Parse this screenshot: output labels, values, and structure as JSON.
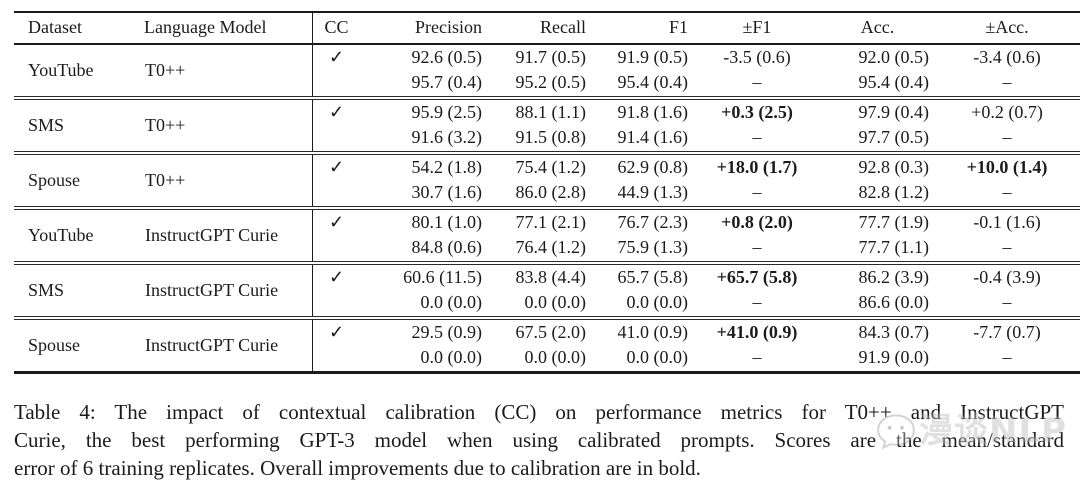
{
  "table": {
    "headers": [
      "Dataset",
      "Language Model",
      "CC",
      "Precision",
      "Recall",
      "F1",
      "±F1",
      "Acc.",
      "±Acc."
    ],
    "check_glyph": "✓",
    "groups": [
      {
        "dataset": "YouTube",
        "model": "T0++",
        "rows": [
          {
            "cc": "✓",
            "cells": [
              {
                "t": "92.6 (0.5)"
              },
              {
                "t": "91.7 (0.5)"
              },
              {
                "t": "91.9 (0.5)"
              },
              {
                "t": "-3.5 (0.6)"
              },
              {
                "t": "92.0 (0.5)"
              },
              {
                "t": "-3.4 (0.6)"
              }
            ]
          },
          {
            "cc": "",
            "cells": [
              {
                "t": "95.7 (0.4)"
              },
              {
                "t": "95.2 (0.5)"
              },
              {
                "t": "95.4 (0.4)"
              },
              {
                "t": "–"
              },
              {
                "t": "95.4 (0.4)"
              },
              {
                "t": "–"
              }
            ]
          }
        ]
      },
      {
        "dataset": "SMS",
        "model": "T0++",
        "rows": [
          {
            "cc": "✓",
            "cells": [
              {
                "t": "95.9 (2.5)"
              },
              {
                "t": "88.1 (1.1)"
              },
              {
                "t": "91.8 (1.6)"
              },
              {
                "t": "+0.3 (2.5)",
                "b": true
              },
              {
                "t": "97.9 (0.4)"
              },
              {
                "t": "+0.2 (0.7)"
              }
            ]
          },
          {
            "cc": "",
            "cells": [
              {
                "t": "91.6 (3.2)"
              },
              {
                "t": "91.5 (0.8)"
              },
              {
                "t": "91.4 (1.6)"
              },
              {
                "t": "–"
              },
              {
                "t": "97.7 (0.5)"
              },
              {
                "t": "–"
              }
            ]
          }
        ]
      },
      {
        "dataset": "Spouse",
        "model": "T0++",
        "rows": [
          {
            "cc": "✓",
            "cells": [
              {
                "t": "54.2 (1.8)"
              },
              {
                "t": "75.4 (1.2)"
              },
              {
                "t": "62.9 (0.8)"
              },
              {
                "t": "+18.0 (1.7)",
                "b": true
              },
              {
                "t": "92.8 (0.3)"
              },
              {
                "t": "+10.0 (1.4)",
                "b": true
              }
            ]
          },
          {
            "cc": "",
            "cells": [
              {
                "t": "30.7 (1.6)"
              },
              {
                "t": "86.0 (2.8)"
              },
              {
                "t": "44.9 (1.3)"
              },
              {
                "t": "–"
              },
              {
                "t": "82.8 (1.2)"
              },
              {
                "t": "–"
              }
            ]
          }
        ]
      },
      {
        "dataset": "YouTube",
        "model": "InstructGPT Curie",
        "rows": [
          {
            "cc": "✓",
            "cells": [
              {
                "t": "80.1 (1.0)"
              },
              {
                "t": "77.1 (2.1)"
              },
              {
                "t": "76.7 (2.3)"
              },
              {
                "t": "+0.8 (2.0)",
                "b": true
              },
              {
                "t": "77.7 (1.9)"
              },
              {
                "t": "-0.1 (1.6)"
              }
            ]
          },
          {
            "cc": "",
            "cells": [
              {
                "t": "84.8 (0.6)"
              },
              {
                "t": "76.4 (1.2)"
              },
              {
                "t": "75.9 (1.3)"
              },
              {
                "t": "–"
              },
              {
                "t": "77.7 (1.1)"
              },
              {
                "t": "–"
              }
            ]
          }
        ]
      },
      {
        "dataset": "SMS",
        "model": "InstructGPT Curie",
        "rows": [
          {
            "cc": "✓",
            "cells": [
              {
                "t": "60.6 (11.5)"
              },
              {
                "t": "83.8 (4.4)"
              },
              {
                "t": "65.7 (5.8)"
              },
              {
                "t": "+65.7 (5.8)",
                "b": true
              },
              {
                "t": "86.2 (3.9)"
              },
              {
                "t": "-0.4 (3.9)"
              }
            ]
          },
          {
            "cc": "",
            "cells": [
              {
                "t": "0.0 (0.0)"
              },
              {
                "t": "0.0 (0.0)"
              },
              {
                "t": "0.0 (0.0)"
              },
              {
                "t": "–"
              },
              {
                "t": "86.6 (0.0)"
              },
              {
                "t": "–"
              }
            ]
          }
        ]
      },
      {
        "dataset": "Spouse",
        "model": "InstructGPT Curie",
        "rows": [
          {
            "cc": "✓",
            "cells": [
              {
                "t": "29.5 (0.9)"
              },
              {
                "t": "67.5 (2.0)"
              },
              {
                "t": "41.0 (0.9)"
              },
              {
                "t": "+41.0 (0.9)",
                "b": true
              },
              {
                "t": "84.3 (0.7)"
              },
              {
                "t": "-7.7 (0.7)"
              }
            ]
          },
          {
            "cc": "",
            "cells": [
              {
                "t": "0.0 (0.0)"
              },
              {
                "t": "0.0 (0.0)"
              },
              {
                "t": "0.0 (0.0)"
              },
              {
                "t": "–"
              },
              {
                "t": "91.9 (0.0)"
              },
              {
                "t": "–"
              }
            ]
          }
        ]
      }
    ]
  },
  "caption": {
    "lines": [
      "Table 4:  The impact of contextual calibration (CC) on performance metrics for T0++ and InstructGPT",
      "Curie, the best performing GPT-3 model when using calibrated prompts.  Scores are the mean/standard",
      "error of 6 training replicates. Overall improvements due to calibration are in bold."
    ]
  },
  "watermark": {
    "text": "漫谈NLP",
    "icon_name": "wechat-smiley-icon"
  }
}
